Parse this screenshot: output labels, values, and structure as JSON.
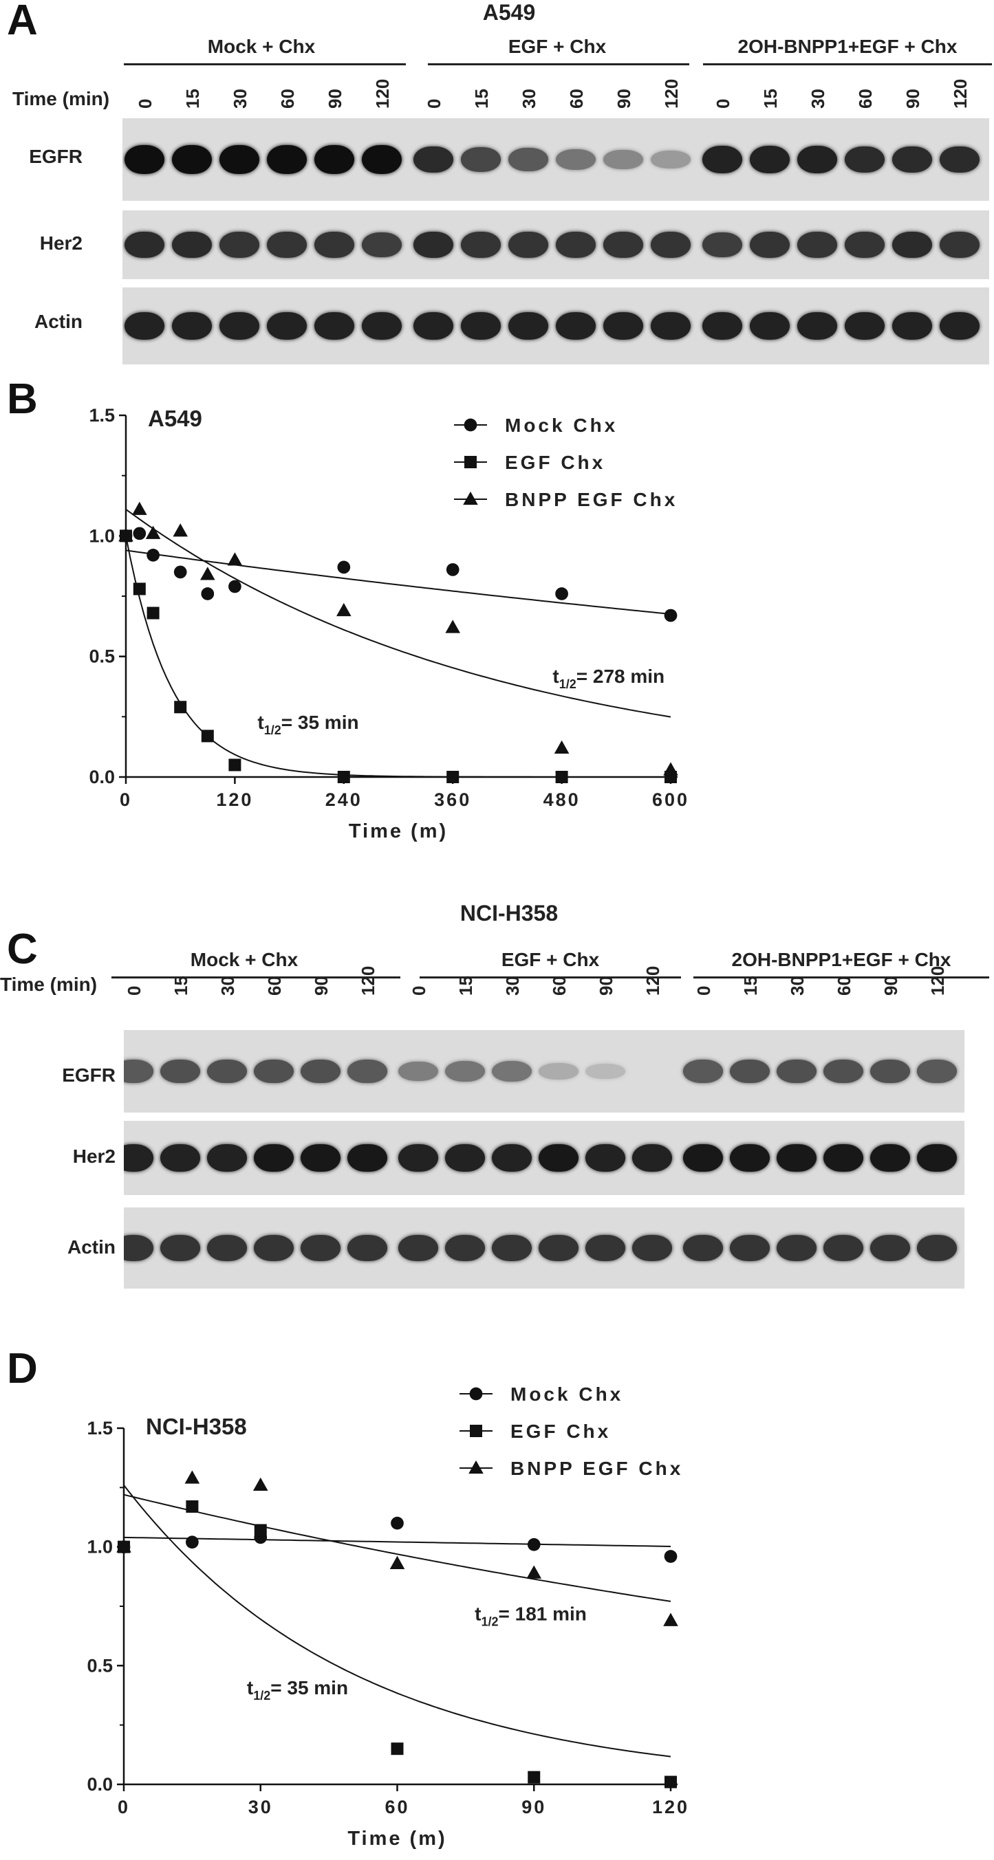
{
  "panels": [
    {
      "letter": "A",
      "cell_line": "A549",
      "time_label": "Time (min)",
      "groups": [
        {
          "label": "Mock + Chx",
          "times": [
            "0",
            "15",
            "30",
            "60",
            "90",
            "120"
          ]
        },
        {
          "label": "EGF + Chx",
          "times": [
            "0",
            "15",
            "30",
            "60",
            "90",
            "120"
          ]
        },
        {
          "label": "2OH-BNPP1+EGF + Chx",
          "times": [
            "0",
            "15",
            "30",
            "60",
            "90",
            "120"
          ]
        }
      ],
      "blots": [
        {
          "label": "EGFR",
          "intensity": [
            1,
            1,
            1,
            1,
            1,
            1,
            0.85,
            0.7,
            0.6,
            0.45,
            0.35,
            0.25,
            0.9,
            0.9,
            0.9,
            0.85,
            0.85,
            0.85
          ]
        },
        {
          "label": "Her2",
          "intensity": [
            0.85,
            0.85,
            0.8,
            0.8,
            0.8,
            0.75,
            0.85,
            0.8,
            0.8,
            0.8,
            0.8,
            0.8,
            0.75,
            0.8,
            0.8,
            0.8,
            0.85,
            0.8
          ]
        },
        {
          "label": "Actin",
          "intensity": [
            0.9,
            0.9,
            0.9,
            0.9,
            0.9,
            0.9,
            0.9,
            0.9,
            0.9,
            0.9,
            0.9,
            0.9,
            0.9,
            0.9,
            0.9,
            0.9,
            0.9,
            0.9
          ]
        }
      ]
    },
    {
      "letter": "C",
      "cell_line": "NCI-H358",
      "time_label": "Time (min)",
      "groups": [
        {
          "label": "Mock + Chx",
          "times": [
            "0",
            "15",
            "30",
            "60",
            "90",
            "120"
          ]
        },
        {
          "label": "EGF + Chx",
          "times": [
            "0",
            "15",
            "30",
            "60",
            "90",
            "120"
          ]
        },
        {
          "label": "2OH-BNPP1+EGF + Chx",
          "times": [
            "0",
            "15",
            "30",
            "60",
            "90",
            "120"
          ]
        }
      ],
      "blots": [
        {
          "label": "EGFR",
          "intensity": [
            0.6,
            0.65,
            0.65,
            0.65,
            0.65,
            0.6,
            0.4,
            0.45,
            0.45,
            0.15,
            0.08,
            0.0,
            0.6,
            0.65,
            0.65,
            0.65,
            0.65,
            0.6
          ]
        },
        {
          "label": "Her2",
          "intensity": [
            0.9,
            0.9,
            0.9,
            0.95,
            0.95,
            0.95,
            0.9,
            0.9,
            0.9,
            0.95,
            0.9,
            0.9,
            0.95,
            0.95,
            0.95,
            0.95,
            0.95,
            0.95
          ]
        },
        {
          "label": "Actin",
          "intensity": [
            0.8,
            0.8,
            0.8,
            0.8,
            0.8,
            0.8,
            0.8,
            0.8,
            0.8,
            0.8,
            0.8,
            0.8,
            0.8,
            0.8,
            0.8,
            0.8,
            0.8,
            0.8
          ]
        }
      ]
    }
  ],
  "chart_data": [
    {
      "panel": "B",
      "type": "scatter",
      "title": "A549",
      "xlabel": "Time (m)",
      "ylabel": "",
      "xlim": [
        0,
        600
      ],
      "ylim": [
        0,
        1.5
      ],
      "xticks": [
        "0",
        "120",
        "240",
        "360",
        "480",
        "600"
      ],
      "yticks": [
        "0.0",
        "0.5",
        "1.0",
        "1.5"
      ],
      "legend_position": "top-right",
      "series": [
        {
          "name": "Mock Chx",
          "marker": "circle",
          "x": [
            0,
            15,
            30,
            60,
            90,
            120,
            240,
            360,
            480,
            600
          ],
          "y": [
            1.0,
            1.01,
            0.92,
            0.85,
            0.76,
            0.79,
            0.87,
            0.86,
            0.76,
            0.67
          ],
          "fit": {
            "kind": "exp",
            "y0": 0.94,
            "k": 0.00055
          }
        },
        {
          "name": "EGF Chx",
          "marker": "square",
          "x": [
            0,
            15,
            30,
            60,
            90,
            120,
            240,
            360,
            480,
            600
          ],
          "y": [
            1.0,
            0.78,
            0.68,
            0.29,
            0.17,
            0.05,
            0.0,
            0.0,
            0.0,
            0.0
          ],
          "fit": {
            "kind": "exp",
            "y0": 1.0,
            "k": 0.0198
          }
        },
        {
          "name": "BNPP EGF Chx",
          "marker": "triangle",
          "x": [
            0,
            15,
            30,
            60,
            90,
            120,
            240,
            360,
            480,
            600
          ],
          "y": [
            1.0,
            1.11,
            1.01,
            1.02,
            0.84,
            0.9,
            0.69,
            0.62,
            0.12,
            0.03
          ],
          "fit": {
            "kind": "exp",
            "y0": 1.11,
            "k": 0.00249
          }
        }
      ],
      "annotations": [
        {
          "text": "t",
          "sub": "1/2",
          "rest": "= 35 min",
          "x": 145,
          "y": 0.2
        },
        {
          "text": "t",
          "sub": "1/2",
          "rest": "= 278 min",
          "x": 470,
          "y": 0.39
        }
      ]
    },
    {
      "panel": "D",
      "type": "scatter",
      "title": "NCI-H358",
      "xlabel": "Time (m)",
      "ylabel": "",
      "xlim": [
        0,
        120
      ],
      "ylim": [
        0,
        1.5
      ],
      "xticks": [
        "0",
        "30",
        "60",
        "90",
        "120"
      ],
      "yticks": [
        "0.0",
        "0.5",
        "1.0",
        "1.5"
      ],
      "legend_position": "top-right",
      "series": [
        {
          "name": "Mock Chx",
          "marker": "circle",
          "x": [
            0,
            15,
            30,
            60,
            90,
            120
          ],
          "y": [
            1.0,
            1.02,
            1.04,
            1.1,
            1.01,
            0.96
          ],
          "fit": {
            "kind": "exp",
            "y0": 1.04,
            "k": 0.00031
          }
        },
        {
          "name": "EGF Chx",
          "marker": "square",
          "x": [
            0,
            15,
            30,
            60,
            90,
            120
          ],
          "y": [
            1.0,
            1.17,
            1.07,
            0.15,
            0.03,
            0.01
          ],
          "fit": {
            "kind": "exp",
            "y0": 1.26,
            "k": 0.0198
          }
        },
        {
          "name": "BNPP EGF Chx",
          "marker": "triangle",
          "x": [
            0,
            15,
            30,
            60,
            90,
            120
          ],
          "y": [
            1.0,
            1.29,
            1.26,
            0.93,
            0.89,
            0.69
          ],
          "fit": {
            "kind": "exp",
            "y0": 1.22,
            "k": 0.00383
          }
        }
      ],
      "annotations": [
        {
          "text": "t",
          "sub": "1/2",
          "rest": "= 35 min",
          "x": 27,
          "y": 0.38
        },
        {
          "text": "t",
          "sub": "1/2",
          "rest": "= 181 min",
          "x": 77,
          "y": 0.69
        }
      ]
    }
  ]
}
